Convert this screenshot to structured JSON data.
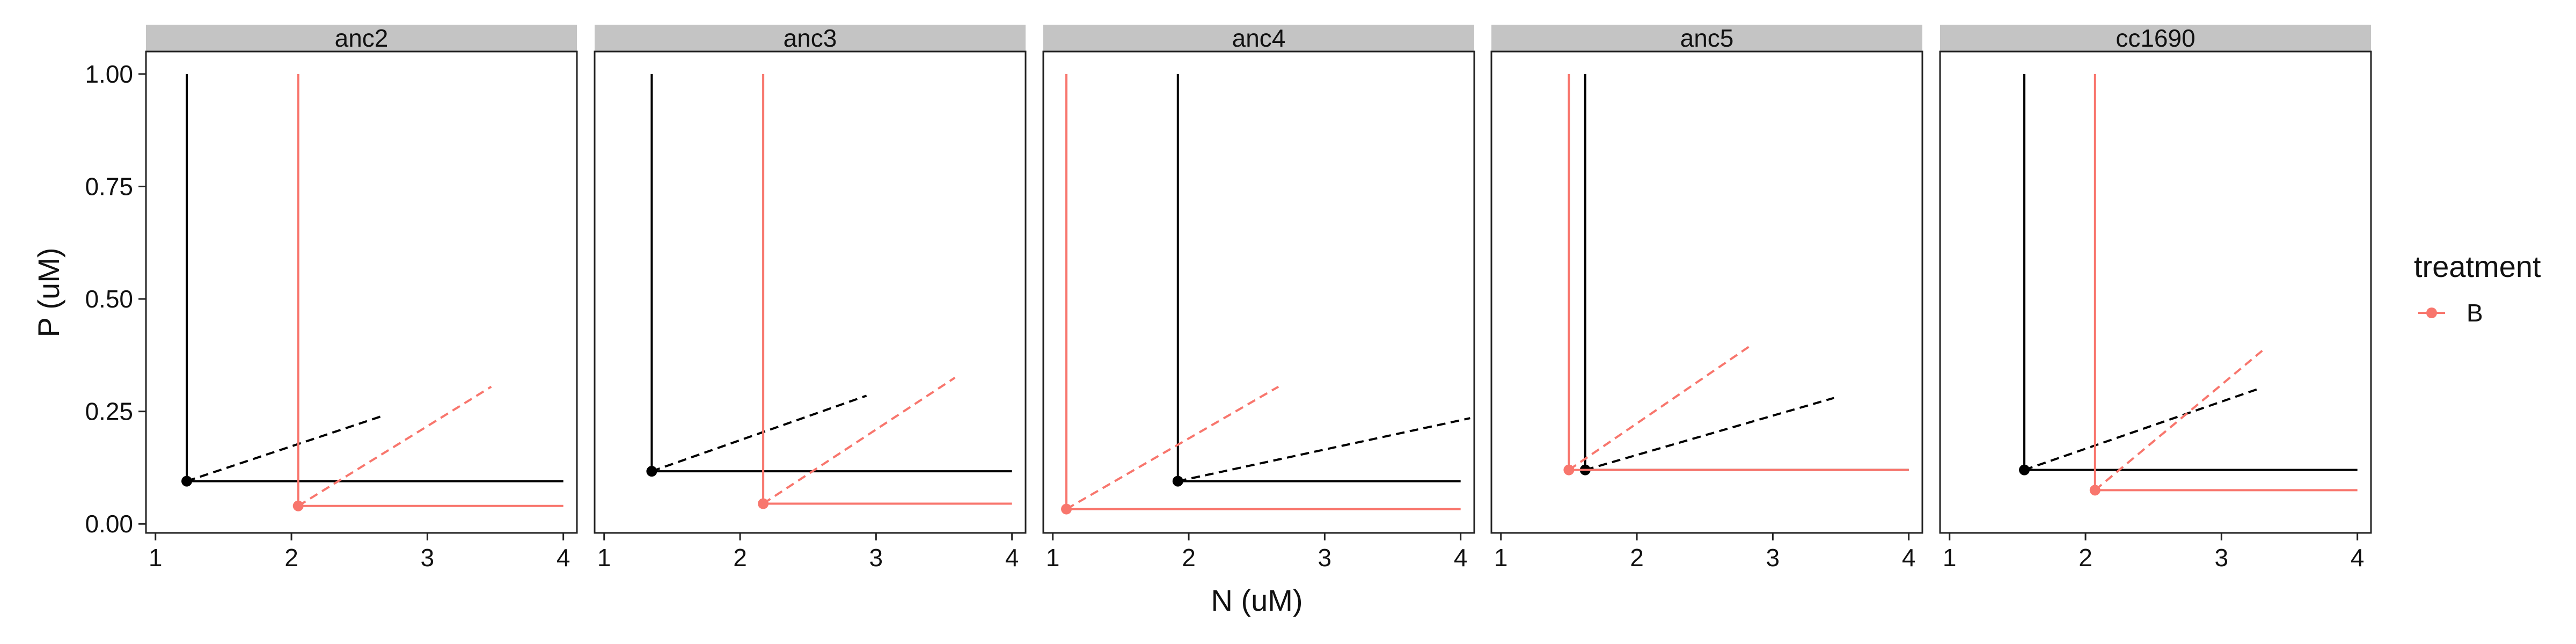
{
  "chart_data": {
    "type": "line",
    "facets": [
      "anc2",
      "anc3",
      "anc4",
      "anc5",
      "cc1690"
    ],
    "xlabel": "N (uM)",
    "ylabel": "P (uM)",
    "xlim": [
      0.93,
      4.1
    ],
    "ylim": [
      -0.02,
      1.05
    ],
    "x_ticks": [
      "1",
      "2",
      "3",
      "4"
    ],
    "y_ticks": [
      "0.00",
      "0.25",
      "0.50",
      "0.75",
      "1.00"
    ],
    "legend": {
      "title": "treatment",
      "entries": [
        "B"
      ],
      "position": "right"
    },
    "colors": {
      "reference": "#000000",
      "treatment_B": "#F8766D",
      "strip": "#C4C4C4"
    },
    "panels": [
      {
        "facet": "anc2",
        "series": [
          {
            "group": "reference",
            "color": "#000000",
            "n_star": 1.23,
            "p_star": 0.095,
            "n_end": 4.0,
            "p_top": 1.0,
            "dash_end": [
              2.67,
              0.24
            ]
          },
          {
            "group": "B",
            "color": "#F8766D",
            "n_star": 2.05,
            "p_star": 0.04,
            "n_end": 4.0,
            "p_top": 1.0,
            "dash_end": [
              3.47,
              0.305
            ]
          }
        ]
      },
      {
        "facet": "anc3",
        "series": [
          {
            "group": "reference",
            "color": "#000000",
            "n_star": 1.35,
            "p_star": 0.117,
            "n_end": 4.0,
            "p_top": 1.0,
            "dash_end": [
              2.93,
              0.285
            ]
          },
          {
            "group": "B",
            "color": "#F8766D",
            "n_star": 2.17,
            "p_star": 0.045,
            "n_end": 4.0,
            "p_top": 1.0,
            "dash_end": [
              3.58,
              0.325
            ]
          }
        ]
      },
      {
        "facet": "anc4",
        "series": [
          {
            "group": "reference",
            "color": "#000000",
            "n_star": 1.92,
            "p_star": 0.095,
            "n_end": 4.0,
            "p_top": 1.0,
            "dash_end": [
              4.07,
              0.235
            ]
          },
          {
            "group": "B",
            "color": "#F8766D",
            "n_star": 1.1,
            "p_star": 0.033,
            "n_end": 4.0,
            "p_top": 1.0,
            "dash_end": [
              2.66,
              0.305
            ]
          }
        ]
      },
      {
        "facet": "anc5",
        "series": [
          {
            "group": "reference",
            "color": "#000000",
            "n_star": 1.62,
            "p_star": 0.12,
            "n_end": 4.0,
            "p_top": 1.0,
            "dash_end": [
              3.45,
              0.28
            ]
          },
          {
            "group": "B",
            "color": "#F8766D",
            "n_star": 1.5,
            "p_star": 0.12,
            "n_end": 4.0,
            "p_top": 1.0,
            "dash_end": [
              2.83,
              0.395
            ]
          }
        ]
      },
      {
        "facet": "cc1690",
        "series": [
          {
            "group": "reference",
            "color": "#000000",
            "n_star": 1.55,
            "p_star": 0.12,
            "n_end": 4.0,
            "p_top": 1.0,
            "dash_end": [
              3.27,
              0.3
            ]
          },
          {
            "group": "B",
            "color": "#F8766D",
            "n_star": 2.07,
            "p_star": 0.075,
            "n_end": 4.0,
            "p_top": 1.0,
            "dash_end": [
              3.3,
              0.385
            ]
          }
        ]
      }
    ]
  }
}
